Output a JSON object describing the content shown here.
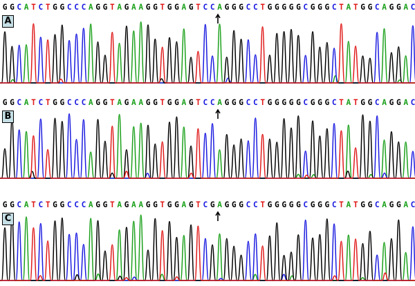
{
  "panels": [
    {
      "label": "A",
      "sequence": "GGCATCTGGCCCAGGTAGAAGGTGGAGTCCAGGGCCTGGGGGCGGGCTATGGCAGGAC",
      "arrow_index": 30,
      "seed": 11
    },
    {
      "label": "B",
      "sequence": "GGCATCTGGCCCAGGTAGAAGGTGGAGTCCAGGGCCTGGGGGCGGGCTATGGCAGGAC",
      "arrow_index": 30,
      "seed": 23
    },
    {
      "label": "C",
      "sequence": "GGCATCTGGCCCAGGTAGAAGGTGGAGTCGAGGGCCTGGGGGCGGGCTATGGCAGGAC",
      "arrow_index": 30,
      "seed": 37
    }
  ],
  "base_colors": {
    "A": "#1aa01a",
    "C": "#1a1ae0",
    "G": "#000000",
    "T": "#e01a1a"
  }
}
